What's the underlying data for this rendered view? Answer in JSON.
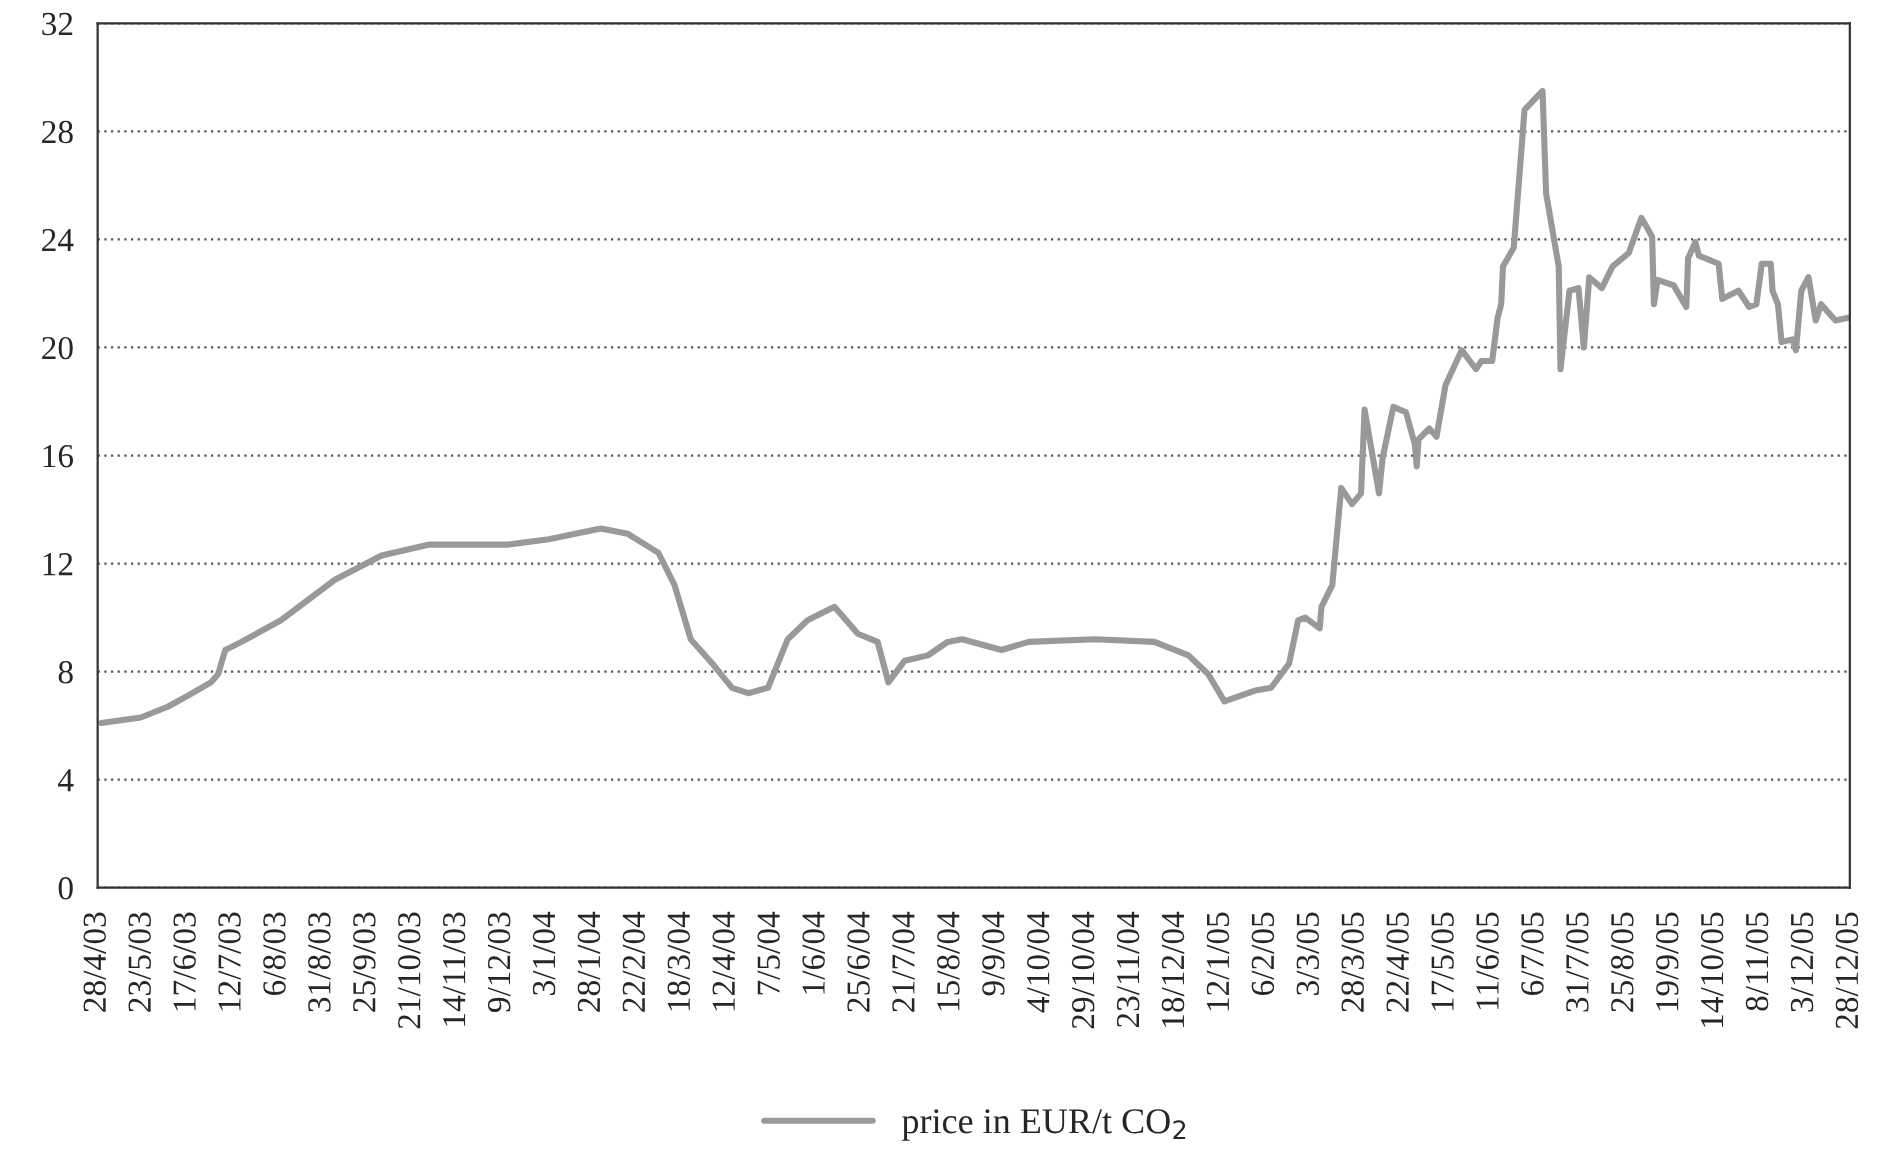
{
  "chart_data": {
    "type": "line",
    "ylim": [
      0,
      32
    ],
    "yticks": [
      0,
      4,
      8,
      12,
      16,
      20,
      24,
      28,
      32
    ],
    "grid": "y",
    "legend": "bottom",
    "line_style": "solid",
    "marker": "none",
    "xlim": [
      "2003-04-28",
      "2005-12-28"
    ],
    "xticks": [
      {
        "value": "2003-04-28",
        "label": "28/4/03"
      },
      {
        "value": "2003-05-23",
        "label": "23/5/03"
      },
      {
        "value": "2003-06-17",
        "label": "17/6/03"
      },
      {
        "value": "2003-07-12",
        "label": "12/7/03"
      },
      {
        "value": "2003-08-06",
        "label": "6/8/03"
      },
      {
        "value": "2003-08-31",
        "label": "31/8/03"
      },
      {
        "value": "2003-09-25",
        "label": "25/9/03"
      },
      {
        "value": "2003-10-20",
        "label": "21/10/03"
      },
      {
        "value": "2003-11-14",
        "label": "14/11/03"
      },
      {
        "value": "2003-12-09",
        "label": "9/12/03"
      },
      {
        "value": "2004-01-03",
        "label": "3/1/04"
      },
      {
        "value": "2004-01-28",
        "label": "28/1/04"
      },
      {
        "value": "2004-02-22",
        "label": "22/2/04"
      },
      {
        "value": "2004-03-18",
        "label": "18/3/04"
      },
      {
        "value": "2004-04-12",
        "label": "12/4/04"
      },
      {
        "value": "2004-05-07",
        "label": "7/5/04"
      },
      {
        "value": "2004-06-01",
        "label": "1/6/04"
      },
      {
        "value": "2004-06-26",
        "label": "25/6/04"
      },
      {
        "value": "2004-07-21",
        "label": "21/7/04"
      },
      {
        "value": "2004-08-15",
        "label": "15/8/04"
      },
      {
        "value": "2004-09-09",
        "label": "9/9/04"
      },
      {
        "value": "2004-10-04",
        "label": "4/10/04"
      },
      {
        "value": "2004-10-29",
        "label": "29/10/04"
      },
      {
        "value": "2004-11-23",
        "label": "23/11/04"
      },
      {
        "value": "2004-12-18",
        "label": "18/12/04"
      },
      {
        "value": "2005-01-12",
        "label": "12/1/05"
      },
      {
        "value": "2005-02-06",
        "label": "6/2/05"
      },
      {
        "value": "2005-03-03",
        "label": "3/3/05"
      },
      {
        "value": "2005-03-28",
        "label": "28/3/05"
      },
      {
        "value": "2005-04-22",
        "label": "22/4/05"
      },
      {
        "value": "2005-05-17",
        "label": "17/5/05"
      },
      {
        "value": "2005-06-11",
        "label": "11/6/05"
      },
      {
        "value": "2005-07-06",
        "label": "6/7/05"
      },
      {
        "value": "2005-07-31",
        "label": "31/7/05"
      },
      {
        "value": "2005-08-25",
        "label": "25/8/05"
      },
      {
        "value": "2005-09-19",
        "label": "19/9/05"
      },
      {
        "value": "2005-10-14",
        "label": "14/10/05"
      },
      {
        "value": "2005-11-08",
        "label": "8/11/05"
      },
      {
        "value": "2005-12-03",
        "label": "3/12/05"
      },
      {
        "value": "2005-12-28",
        "label": "28/12/05"
      }
    ],
    "series": [
      {
        "name": "price in EUR/t CO$_{2}$",
        "color": "#999999",
        "x": [
          "2003-04-30",
          "2003-05-22",
          "2003-06-06",
          "2003-06-17",
          "2003-06-30",
          "2003-07-04",
          "2003-07-08",
          "2003-07-17",
          "2003-08-08",
          "2003-09-07",
          "2003-10-03",
          "2003-10-29",
          "2003-12-12",
          "2004-01-04",
          "2004-02-02",
          "2004-02-17",
          "2004-03-05",
          "2004-03-14",
          "2004-03-23",
          "2004-04-04",
          "2004-04-15",
          "2004-04-24",
          "2004-05-05",
          "2004-05-16",
          "2004-05-27",
          "2004-06-11",
          "2004-06-24",
          "2004-07-05",
          "2004-07-11",
          "2004-07-20",
          "2004-08-02",
          "2004-08-13",
          "2004-08-21",
          "2004-09-12",
          "2004-09-27",
          "2004-11-03",
          "2004-12-06",
          "2004-12-25",
          "2005-01-05",
          "2005-01-14",
          "2005-01-31",
          "2005-02-09",
          "2005-02-19",
          "2005-02-24",
          "2005-02-28",
          "2005-03-08",
          "2005-03-09",
          "2005-03-15",
          "2005-03-20",
          "2005-03-26",
          "2005-03-31",
          "2005-04-02",
          "2005-04-10",
          "2005-04-12",
          "2005-04-18",
          "2005-04-25",
          "2005-04-30",
          "2005-05-01",
          "2005-05-02",
          "2005-05-08",
          "2005-05-12",
          "2005-05-17",
          "2005-05-26",
          "2005-06-03",
          "2005-06-06",
          "2005-06-12",
          "2005-06-15",
          "2005-06-17",
          "2005-06-18",
          "2005-06-24",
          "2005-06-30",
          "2005-07-10",
          "2005-07-12",
          "2005-07-19",
          "2005-07-20",
          "2005-07-25",
          "2005-07-30",
          "2005-08-02",
          "2005-08-05",
          "2005-08-12",
          "2005-08-18",
          "2005-08-27",
          "2005-09-03",
          "2005-09-09",
          "2005-09-10",
          "2005-09-12",
          "2005-09-21",
          "2005-09-28",
          "2005-09-29",
          "2005-10-03",
          "2005-10-05",
          "2005-10-16",
          "2005-10-18",
          "2005-10-27",
          "2005-11-02",
          "2005-11-06",
          "2005-11-09",
          "2005-11-14",
          "2005-11-15",
          "2005-11-18",
          "2005-11-20",
          "2005-11-26",
          "2005-11-28",
          "2005-12-01",
          "2005-12-05",
          "2005-12-09",
          "2005-12-12",
          "2005-12-20",
          "2005-12-27"
        ],
        "values": [
          6.1,
          6.3,
          6.7,
          7.1,
          7.6,
          7.9,
          8.8,
          9.1,
          9.9,
          11.4,
          12.3,
          12.7,
          12.7,
          12.9,
          13.3,
          13.1,
          12.4,
          11.2,
          9.2,
          8.3,
          7.4,
          7.2,
          7.4,
          9.2,
          9.9,
          10.4,
          9.4,
          9.1,
          7.6,
          8.4,
          8.6,
          9.1,
          9.2,
          8.8,
          9.1,
          9.2,
          9.1,
          8.6,
          7.9,
          6.9,
          7.3,
          7.4,
          8.3,
          9.9,
          10.0,
          9.6,
          10.4,
          11.2,
          14.8,
          14.2,
          14.6,
          17.7,
          14.6,
          15.9,
          17.8,
          17.6,
          16.4,
          15.6,
          16.6,
          17.0,
          16.7,
          18.6,
          19.9,
          19.2,
          19.5,
          19.5,
          21.1,
          21.6,
          23.0,
          23.7,
          28.8,
          29.5,
          25.7,
          23.0,
          19.2,
          22.1,
          22.2,
          20.0,
          22.6,
          22.2,
          23.0,
          23.5,
          24.8,
          24.1,
          21.6,
          22.5,
          22.3,
          21.5,
          23.3,
          23.9,
          23.4,
          23.1,
          21.8,
          22.1,
          21.5,
          21.6,
          23.1,
          23.1,
          22.1,
          21.6,
          20.2,
          20.3,
          19.9,
          22.1,
          22.6,
          21.0,
          21.6,
          21.0,
          21.1
        ]
      }
    ]
  }
}
